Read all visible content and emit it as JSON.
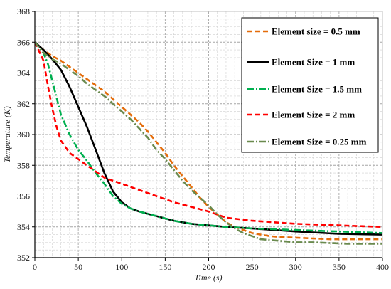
{
  "chart_data": {
    "type": "line",
    "title": "",
    "xlabel": "Time (s)",
    "ylabel": "Temperature (K)",
    "xlim": [
      0,
      400
    ],
    "ylim": [
      352,
      368
    ],
    "xticks": [
      0,
      50,
      100,
      150,
      200,
      250,
      300,
      350,
      400
    ],
    "yticks": [
      352,
      354,
      356,
      358,
      360,
      362,
      364,
      366,
      368
    ],
    "grid": true,
    "legend_position": "top-right",
    "series": [
      {
        "name": "Element size = 0.5 mm",
        "color": "#e46c0a",
        "dash": "dashed",
        "x": [
          0,
          10,
          20,
          30,
          40,
          50,
          60,
          70,
          80,
          90,
          100,
          110,
          120,
          130,
          140,
          150,
          160,
          170,
          180,
          190,
          200,
          210,
          220,
          230,
          240,
          250,
          260,
          270,
          280,
          300,
          320,
          340,
          360,
          380,
          400
        ],
        "y": [
          366.0,
          365.5,
          365.1,
          364.8,
          364.4,
          364.0,
          363.6,
          363.2,
          362.8,
          362.3,
          361.8,
          361.3,
          360.8,
          360.2,
          359.5,
          358.8,
          358.0,
          357.3,
          356.6,
          355.9,
          355.3,
          354.8,
          354.3,
          354.0,
          353.8,
          353.6,
          353.5,
          353.4,
          353.35,
          353.3,
          353.25,
          353.2,
          353.2,
          353.2,
          353.2
        ]
      },
      {
        "name": "Element Size = 1 mm",
        "color": "#000000",
        "dash": "solid",
        "x": [
          0,
          10,
          20,
          30,
          40,
          50,
          60,
          70,
          80,
          90,
          100,
          110,
          120,
          140,
          160,
          180,
          200,
          220,
          250,
          300,
          350,
          400
        ],
        "y": [
          366.0,
          365.5,
          364.9,
          364.2,
          363.1,
          361.8,
          360.5,
          359.0,
          357.5,
          356.3,
          355.6,
          355.2,
          355.0,
          354.7,
          354.4,
          354.2,
          354.1,
          354.0,
          353.9,
          353.7,
          353.55,
          353.5
        ]
      },
      {
        "name": "Element Size = 1.5 mm",
        "color": "#00b050",
        "dash": "dashdot",
        "x": [
          0,
          10,
          15,
          20,
          30,
          40,
          50,
          60,
          70,
          80,
          90,
          100,
          110,
          120,
          140,
          160,
          180,
          200,
          220,
          250,
          300,
          350,
          400
        ],
        "y": [
          366.0,
          365.3,
          364.6,
          363.5,
          361.3,
          360.0,
          359.0,
          358.3,
          357.5,
          356.8,
          356.0,
          355.5,
          355.2,
          355.0,
          354.7,
          354.4,
          354.2,
          354.1,
          354.0,
          353.9,
          353.8,
          353.7,
          353.6
        ]
      },
      {
        "name": "Element Size = 2 mm",
        "color": "#ff0000",
        "dash": "dashed",
        "x": [
          0,
          10,
          15,
          20,
          25,
          30,
          40,
          50,
          60,
          70,
          80,
          100,
          120,
          140,
          160,
          180,
          200,
          220,
          250,
          300,
          350,
          400
        ],
        "y": [
          366.0,
          364.8,
          363.2,
          361.7,
          360.5,
          359.6,
          358.8,
          358.4,
          358.0,
          357.6,
          357.2,
          356.8,
          356.4,
          356.0,
          355.6,
          355.3,
          355.0,
          354.6,
          354.4,
          354.2,
          354.1,
          354.0
        ]
      },
      {
        "name": "Element Size = 0.25 mm",
        "color": "#6a8a4e",
        "dash": "dashdot",
        "x": [
          0,
          10,
          20,
          30,
          40,
          50,
          60,
          70,
          80,
          90,
          100,
          110,
          120,
          130,
          140,
          150,
          160,
          170,
          180,
          190,
          200,
          210,
          220,
          230,
          240,
          250,
          260,
          280,
          300,
          320,
          340,
          360,
          380,
          400
        ],
        "y": [
          366.0,
          365.3,
          364.9,
          364.6,
          364.2,
          363.8,
          363.3,
          362.9,
          362.5,
          362.0,
          361.5,
          361.0,
          360.4,
          359.8,
          359.0,
          358.4,
          357.7,
          357.0,
          356.4,
          355.9,
          355.4,
          354.8,
          354.3,
          353.9,
          353.6,
          353.4,
          353.2,
          353.1,
          353.0,
          353.0,
          352.95,
          352.9,
          352.9,
          352.9
        ]
      }
    ]
  }
}
